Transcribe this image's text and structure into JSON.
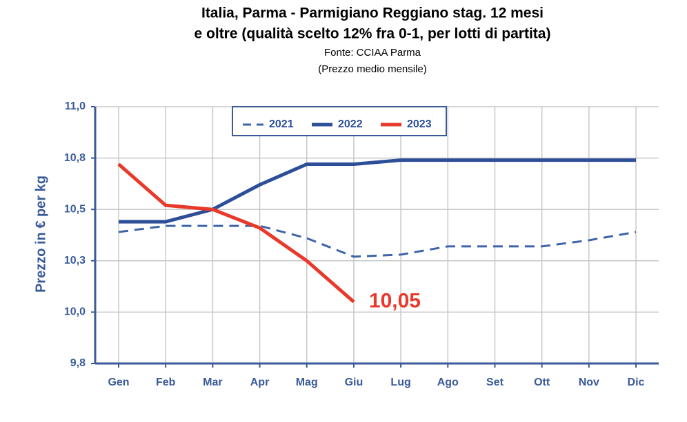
{
  "chart_data": {
    "type": "line",
    "title": [
      "Italia, Parma - Parmigiano Reggiano stag. 12 mesi",
      "e oltre (qualità scelto 12% fra 0-1, per lotti di partita)"
    ],
    "subtitle": [
      "Fonte: CCIAA Parma",
      "(Prezzo medio mensile)"
    ],
    "ylabel": "Prezzo in € per kg",
    "categories": [
      "Gen",
      "Feb",
      "Mar",
      "Apr",
      "Mag",
      "Giu",
      "Lug",
      "Ago",
      "Set",
      "Ott",
      "Nov",
      "Dic"
    ],
    "ylim": [
      9.75,
      11.0
    ],
    "yticks": [
      {
        "value": 9.75,
        "label": "9,8"
      },
      {
        "value": 10.0,
        "label": "10,0"
      },
      {
        "value": 10.25,
        "label": "10,3"
      },
      {
        "value": 10.5,
        "label": "10,5"
      },
      {
        "value": 10.75,
        "label": "10,8"
      },
      {
        "value": 11.0,
        "label": "11,0"
      }
    ],
    "grid": true,
    "series": [
      {
        "name": "2021",
        "color": "#3d64a8",
        "dash": true,
        "values": [
          10.39,
          10.42,
          10.42,
          10.42,
          10.36,
          10.27,
          10.28,
          10.32,
          10.32,
          10.32,
          10.35,
          10.39
        ]
      },
      {
        "name": "2022",
        "color": "#2c4f98",
        "dash": false,
        "values": [
          10.44,
          10.44,
          10.5,
          10.62,
          10.72,
          10.72,
          10.74,
          10.74,
          10.74,
          10.74,
          10.74,
          10.74
        ]
      },
      {
        "name": "2023",
        "color": "#e8392b",
        "dash": false,
        "values": [
          10.72,
          10.52,
          10.5,
          10.41,
          10.25,
          10.05,
          null,
          null,
          null,
          null,
          null,
          null
        ],
        "value_labels": [
          null,
          null,
          null,
          null,
          null,
          "10,05",
          null,
          null,
          null,
          null,
          null,
          null
        ]
      }
    ]
  }
}
